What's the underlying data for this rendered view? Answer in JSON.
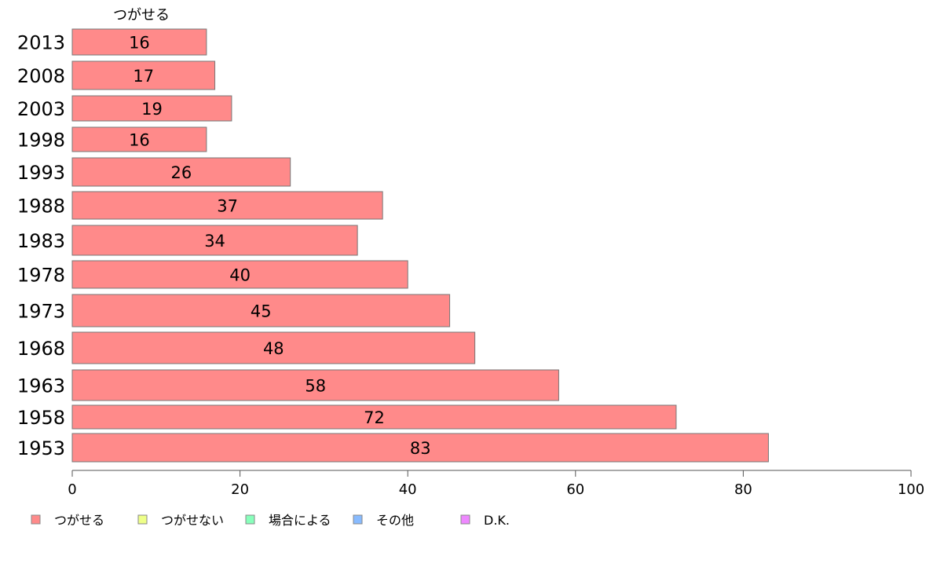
{
  "chart_data": {
    "type": "bar",
    "orientation": "horizontal",
    "series_header": "つがせる",
    "categories": [
      "2013",
      "2008",
      "2003",
      "1998",
      "1993",
      "1988",
      "1983",
      "1978",
      "1973",
      "1968",
      "1963",
      "1958",
      "1953"
    ],
    "series": [
      {
        "name": "つがせる",
        "color": "#ff8a8a",
        "values": [
          16,
          17,
          19,
          16,
          26,
          37,
          34,
          40,
          45,
          48,
          58,
          72,
          83
        ]
      }
    ],
    "xlim": [
      0,
      100
    ],
    "xticks": [
      0,
      20,
      40,
      60,
      80,
      100
    ],
    "grid": false,
    "legend_position": "bottom-left",
    "legend": [
      {
        "label": "つがせる",
        "color": "#ff8a8a"
      },
      {
        "label": "つがせない",
        "color": "#eeff88"
      },
      {
        "label": "場合による",
        "color": "#88ffbb"
      },
      {
        "label": "その他",
        "color": "#88bbff"
      },
      {
        "label": "D.K.",
        "color": "#ee88ff"
      }
    ]
  }
}
